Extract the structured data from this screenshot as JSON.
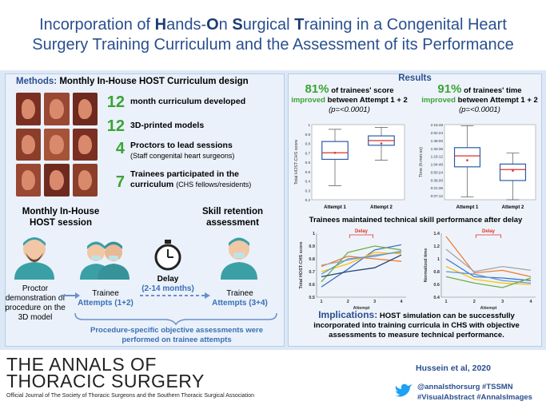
{
  "title": {
    "line1_parts": [
      "Incorporation of ",
      "H",
      "ands-",
      "O",
      "n ",
      "S",
      "urgical ",
      "T",
      "raining in a Congenital Heart"
    ],
    "line2": "Surgery Training Curriculum and the Assessment of its Performance"
  },
  "methods": {
    "header_lead": "Methods:",
    "header_rest": "Monthly In-House HOST Curriculum design",
    "stats": [
      {
        "n": "12",
        "text": "month curriculum developed",
        "sub": ""
      },
      {
        "n": "12",
        "text": "3D-printed models",
        "sub": ""
      },
      {
        "n": "4",
        "text": "Proctors to lead sessions",
        "sub": "(Staff congenital heart surgeons)"
      },
      {
        "n": "7",
        "text": "Trainees participated in the",
        "text2": "curriculum",
        "sub": "(CHS fellows/residents)"
      }
    ],
    "session_label": "Monthly In-House HOST session",
    "retention_label": "Skill retention assessment",
    "proctor_text": "Proctor demonstration of procedure on the 3D model",
    "trainee1": "Trainee",
    "attempts1": "Attempts (1+2)",
    "delay": "Delay",
    "delay_range": "(2-14 months)",
    "trainee2": "Trainee",
    "attempts2": "Attempts (3+4)",
    "footnote": "Procedure-specific objective assessments were performed on trainee attempts"
  },
  "results": {
    "header": "Results",
    "left": {
      "pct": "81%",
      "lead": "of trainees' score",
      "improved": "improved",
      "between": "between Attempt 1 + 2",
      "p": "(p=<0.0001)"
    },
    "right": {
      "pct": "91%",
      "lead": "of trainees' time",
      "improved": "improved",
      "between": "between Attempt 1 + 2",
      "p": "(p=<0.0001)"
    },
    "maintained": "Trainees maintained technical skill performance after delay",
    "delay_tag": "Delay",
    "implications_head": "Implications:",
    "implications_text": "HOST simulation can be successfully incorporated into training curricula in CHS with objective assessments to measure technical performance."
  },
  "chart_data": [
    {
      "type": "box",
      "ylabel": "Total HOST-CHS score",
      "categories": [
        "Attempt 1",
        "Attempt 2"
      ],
      "yticks": [
        "0.2",
        "0.3",
        "0.4",
        "0.5",
        "0.6",
        "0.7",
        "0.8",
        "0.9",
        "1"
      ],
      "ylim": [
        0.2,
        1.0
      ],
      "boxes": [
        {
          "min": 0.35,
          "q1": 0.63,
          "median": 0.7,
          "q3": 0.82,
          "max": 0.95,
          "mean": 0.7
        },
        {
          "min": 0.62,
          "q1": 0.78,
          "median": 0.83,
          "q3": 0.88,
          "max": 0.97,
          "mean": 0.8
        }
      ]
    },
    {
      "type": "box",
      "ylabel": "Time (h:mm:ss)",
      "categories": [
        "Attempt 1",
        "Attempt 2"
      ],
      "yticks": [
        "0:00:00",
        "0:07:12",
        "0:14:24",
        "0:21:36",
        "0:28:48",
        "0:36:00",
        "0:43:12",
        "0:50:24",
        "0:57:36",
        "1:04:48",
        "1:12:00",
        "1:19:12",
        "1:26:24",
        "1:33:36",
        "1:40:48",
        "1:48:00",
        "1:55:12",
        "2:02:24",
        "2:09:36",
        "2:16:48"
      ],
      "yticks_shown": [
        "0:07:12",
        "0:21:36",
        "0:36:00",
        "0:50:24",
        "1:04:48",
        "1:19:12",
        "1:33:36",
        "1:48:00",
        "2:02:24",
        "2:16:48"
      ],
      "ylim_minutes": [
        0,
        137
      ],
      "boxes": [
        {
          "min": 5,
          "q1": 60,
          "median": 80,
          "q3": 95,
          "max": 135,
          "mean": 72
        },
        {
          "min": 0,
          "q1": 35,
          "median": 55,
          "q3": 65,
          "max": 85,
          "mean": 53
        }
      ]
    },
    {
      "type": "line",
      "ylabel": "Total HOST-CHS score",
      "xlabel": "Attempt",
      "x": [
        1,
        2,
        3,
        4
      ],
      "yticks": [
        "0.5",
        "0.6",
        "0.7",
        "0.8",
        "0.9",
        "1"
      ],
      "ylim": [
        0.5,
        1.0
      ],
      "series": [
        {
          "color": "#4472c4",
          "values": [
            0.58,
            0.72,
            0.87,
            0.91
          ]
        },
        {
          "color": "#ed7d31",
          "values": [
            0.74,
            0.82,
            0.8,
            0.78
          ]
        },
        {
          "color": "#a5a5a5",
          "values": [
            0.75,
            0.79,
            0.83,
            0.85
          ]
        },
        {
          "color": "#ffc000",
          "values": [
            0.7,
            0.76,
            0.85,
            0.84
          ]
        },
        {
          "color": "#5b9bd5",
          "values": [
            0.68,
            0.8,
            0.82,
            0.86
          ]
        },
        {
          "color": "#70ad47",
          "values": [
            0.62,
            0.85,
            0.9,
            0.87
          ]
        },
        {
          "color": "#264478",
          "values": [
            0.66,
            0.7,
            0.73,
            0.83
          ]
        }
      ]
    },
    {
      "type": "line",
      "ylabel": "Normalized time",
      "xlabel": "Attempt",
      "x": [
        1,
        2,
        3,
        4
      ],
      "yticks": [
        "0.4",
        "0.6",
        "0.8",
        "1",
        "1.2",
        "1.4"
      ],
      "ylim": [
        0.4,
        1.4
      ],
      "series": [
        {
          "color": "#ed7d31",
          "values": [
            1.35,
            0.78,
            0.82,
            0.72
          ]
        },
        {
          "color": "#a5a5a5",
          "values": [
            1.15,
            0.8,
            0.88,
            0.82
          ]
        },
        {
          "color": "#4472c4",
          "values": [
            1.0,
            0.72,
            0.7,
            0.66
          ]
        },
        {
          "color": "#ffc000",
          "values": [
            0.88,
            0.68,
            0.62,
            0.6
          ]
        },
        {
          "color": "#70ad47",
          "values": [
            0.72,
            0.62,
            0.55,
            0.7
          ]
        },
        {
          "color": "#5b9bd5",
          "values": [
            0.8,
            0.76,
            0.66,
            0.62
          ]
        }
      ]
    }
  ],
  "footer": {
    "journal_line1": "THE ANNALS OF",
    "journal_line2": "THORACIC SURGERY",
    "journal_sub": "Official Journal of The Society of Thoracic Surgeons and the Southern Thoracic Surgical Association",
    "author": "Hussein et al, 2020",
    "handle": "@annalsthorsurg #TSSMN",
    "tags": "#VisualAbstract #AnnalsImages"
  },
  "colors": {
    "accent": "#2a4f8f",
    "green": "#3aa335",
    "delay_red": "#e0302a",
    "twitter": "#1da1f2"
  }
}
